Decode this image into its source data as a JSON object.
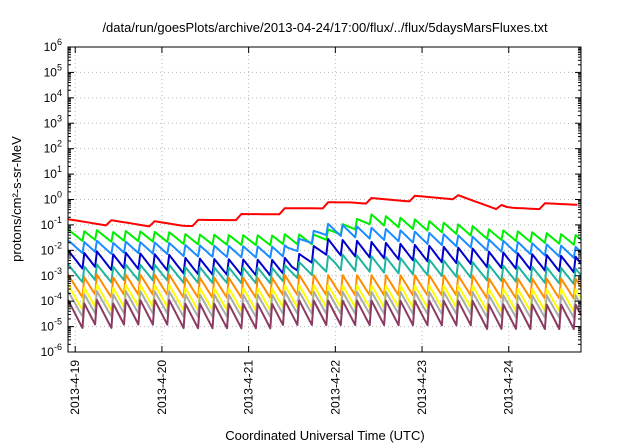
{
  "chart_data": {
    "type": "line",
    "title": "/data/run/goesPlots/archive/2013-04-24/17:00/flux/../flux/5daysMarsFluxes.txt",
    "xlabel": "Coordinated Universal Time (UTC)",
    "ylabel": "protons/cm²-s-sr-MeV",
    "y_scale": "log",
    "ylim_exponents": [
      -6,
      6
    ],
    "y_tick_labels": [
      "10",
      "10",
      "10",
      "10",
      "10",
      "10",
      "10",
      "10",
      "10",
      "10",
      "10",
      "10",
      "10"
    ],
    "y_tick_exponents": [
      "-6",
      "-5",
      "-4",
      "-3",
      "-2",
      "-1",
      "0",
      "1",
      "2",
      "3",
      "4",
      "5",
      "6"
    ],
    "x_range_days": [
      "2013-4-18 22:00",
      "2013-4-24 20:00"
    ],
    "x_ticks": [
      "2013-4-19",
      "2013-4-20",
      "2013-4-21",
      "2013-4-22",
      "2013-4-23",
      "2013-4-24"
    ],
    "grid": true,
    "legend": "none",
    "sawtooth_period_hours": 4,
    "series": [
      {
        "color": "#ff0000",
        "log10_base": [
          [
            0,
            -0.9
          ],
          [
            1.25,
            -1.0
          ],
          [
            3.2,
            -0.1
          ],
          [
            4.35,
            0.1
          ],
          [
            5.0,
            -0.4
          ],
          [
            5.95,
            -0.1
          ]
        ],
        "amplitude": 0.12,
        "period_scale": 3
      },
      {
        "color": "#00ee00",
        "log10_base": [
          [
            0,
            -1.4
          ],
          [
            1.5,
            -1.55
          ],
          [
            2.75,
            -1.6
          ],
          [
            3.4,
            -0.8
          ],
          [
            4.8,
            -1.35
          ],
          [
            5.95,
            -1.6
          ]
        ],
        "amplitude": 0.22,
        "period_scale": 1
      },
      {
        "color": "#1a8cff",
        "log10_base": [
          [
            0,
            -1.85
          ],
          [
            1.5,
            -2.0
          ],
          [
            2.45,
            -2.05
          ],
          [
            2.9,
            -1.2
          ],
          [
            4.2,
            -1.6
          ],
          [
            5.95,
            -2.1
          ]
        ],
        "amplitude": 0.25,
        "period_scale": 1
      },
      {
        "color": "#0000cc",
        "log10_base": [
          [
            0,
            -2.35
          ],
          [
            1.5,
            -2.6
          ],
          [
            2.5,
            -2.65
          ],
          [
            2.9,
            -1.9
          ],
          [
            4.2,
            -2.2
          ],
          [
            5.95,
            -2.55
          ]
        ],
        "amplitude": 0.35,
        "period_scale": 1
      },
      {
        "color": "#1eb4a0",
        "log10_base": [
          [
            0,
            -2.9
          ],
          [
            2.4,
            -2.95
          ],
          [
            3.0,
            -2.5
          ],
          [
            4.5,
            -2.8
          ],
          [
            5.95,
            -3.0
          ]
        ],
        "amplitude": 0.35,
        "period_scale": 1
      },
      {
        "color": "#ff8c00",
        "log10_base": [
          [
            0,
            -3.4
          ],
          [
            5.95,
            -3.45
          ]
        ],
        "amplitude": 0.45,
        "period_scale": 1
      },
      {
        "color": "#ffff00",
        "log10_base": [
          [
            0,
            -3.85
          ],
          [
            5.95,
            -3.9
          ]
        ],
        "amplitude": 0.5,
        "period_scale": 1
      },
      {
        "color": "#aaaaaa",
        "log10_base": [
          [
            0,
            -4.1
          ],
          [
            5.95,
            -4.15
          ]
        ],
        "amplitude": 0.5,
        "period_scale": 1
      },
      {
        "color": "#8b3a62",
        "log10_base": [
          [
            0,
            -4.5
          ],
          [
            5.95,
            -4.55
          ]
        ],
        "amplitude": 0.55,
        "period_scale": 1
      }
    ]
  }
}
